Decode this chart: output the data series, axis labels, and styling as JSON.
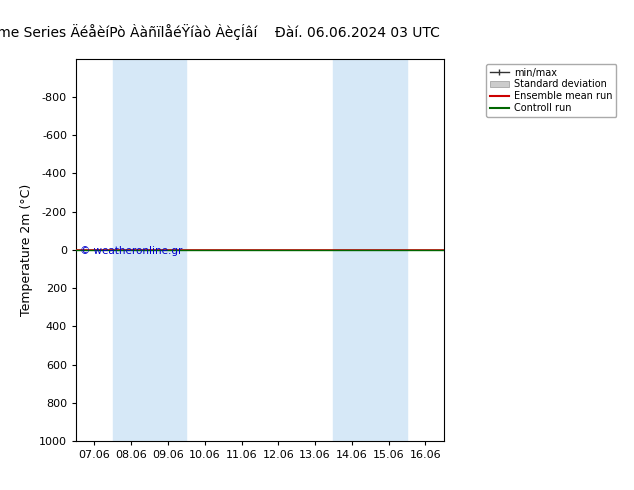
{
  "title": "ENS Time Series ÄéåèíPò ÀàñïlåéŸíàò ÀèçÍâí",
  "title2": "Đàí. 06.06.2024 03 UTC",
  "ylabel": "Temperature 2m (°C)",
  "ylim_bottom": 1000,
  "ylim_top": -1000,
  "yticks": [
    -800,
    -600,
    -400,
    -200,
    0,
    200,
    400,
    600,
    800,
    1000
  ],
  "xtick_labels": [
    "07.06",
    "08.06",
    "09.06",
    "10.06",
    "11.06",
    "12.06",
    "13.06",
    "14.06",
    "15.06",
    "16.06"
  ],
  "xtick_positions": [
    0,
    1,
    2,
    3,
    4,
    5,
    6,
    7,
    8,
    9
  ],
  "blue_bands": [
    [
      1,
      2
    ],
    [
      2,
      3
    ],
    [
      7,
      8
    ],
    [
      8,
      9
    ]
  ],
  "band_color": "#d6e8f7",
  "hline_y": 0,
  "red_line_color": "#cc0000",
  "green_line_color": "#006600",
  "copyright_text": "© weatheronline.gr",
  "copyright_color": "#0000cc",
  "legend_items": [
    "min/max",
    "Standard deviation",
    "Ensemble mean run",
    "Controll run"
  ],
  "legend_colors": [
    "#333333",
    "#bbbbbb",
    "#cc0000",
    "#006600"
  ],
  "bg_color": "#ffffff",
  "plot_bg_color": "#ffffff",
  "border_color": "#000000",
  "font_size_title": 10,
  "font_size_axis": 9,
  "font_size_tick": 8,
  "font_size_legend": 7
}
